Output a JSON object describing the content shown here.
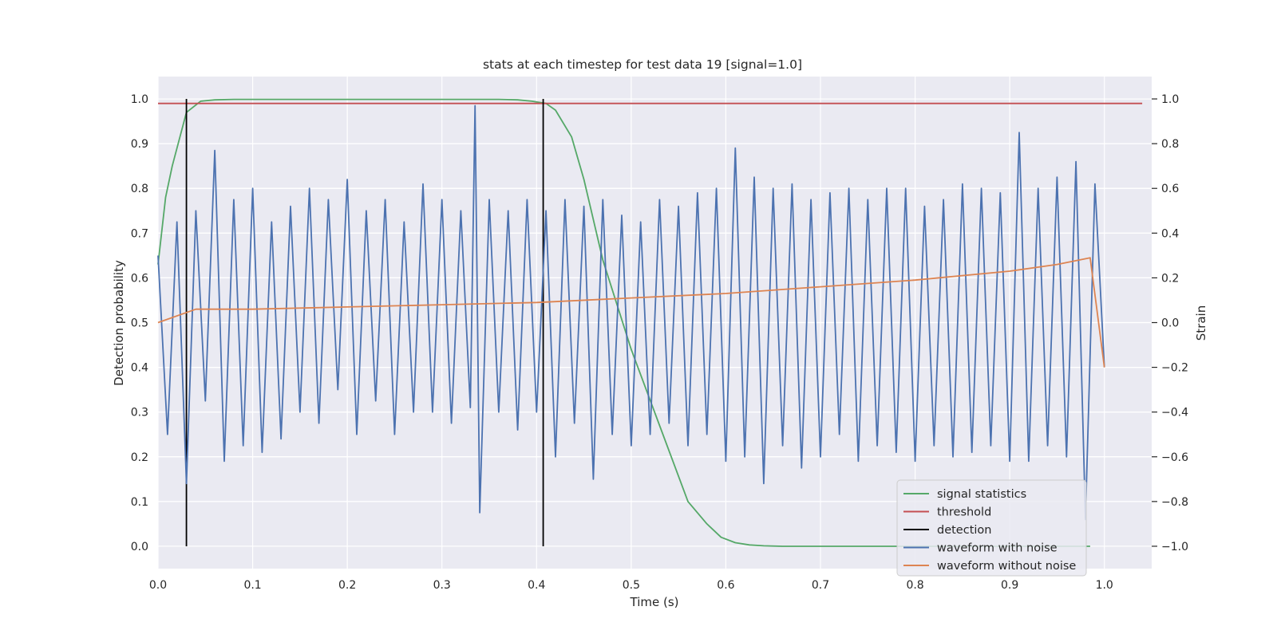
{
  "chart_data": {
    "type": "line",
    "title": "stats at each timestep for test data 19 [signal=1.0]",
    "xlabel": "Time (s)",
    "ylabel": "Detection probability",
    "y2label": "Strain",
    "xlim": [
      0.0,
      1.05
    ],
    "ylim": [
      -0.05,
      1.05
    ],
    "y2lim": [
      -1.1,
      1.1
    ],
    "grid": true,
    "x_ticks": [
      "0.0",
      "0.1",
      "0.2",
      "0.3",
      "0.4",
      "0.5",
      "0.6",
      "0.7",
      "0.8",
      "0.9",
      "1.0"
    ],
    "y_ticks": [
      "0.0",
      "0.1",
      "0.2",
      "0.3",
      "0.4",
      "0.5",
      "0.6",
      "0.7",
      "0.8",
      "0.9",
      "1.0"
    ],
    "y2_ticks": [
      "−1.0",
      "−0.8",
      "−0.6",
      "−0.4",
      "−0.2",
      "0.0",
      "0.2",
      "0.4",
      "0.6",
      "0.8",
      "1.0"
    ],
    "legend_position": "lower-right",
    "colors": {
      "signal": "#55a868",
      "threshold": "#c44e52",
      "detection": "#000000",
      "noisy": "#4c72b0",
      "clean": "#dd8452",
      "background": "#eaeaf2",
      "grid": "#ffffff"
    },
    "series": [
      {
        "name": "signal statistics",
        "axis": "left",
        "x": [
          0.0,
          0.008,
          0.015,
          0.03,
          0.045,
          0.06,
          0.08,
          0.1,
          0.2,
          0.3,
          0.36,
          0.38,
          0.395,
          0.41,
          0.42,
          0.437,
          0.45,
          0.47,
          0.5,
          0.53,
          0.56,
          0.58,
          0.595,
          0.61,
          0.625,
          0.64,
          0.66,
          0.7,
          0.8,
          0.9,
          0.985
        ],
        "y": [
          0.63,
          0.78,
          0.85,
          0.97,
          0.995,
          0.998,
          0.999,
          0.999,
          0.999,
          0.999,
          0.999,
          0.998,
          0.995,
          0.99,
          0.975,
          0.915,
          0.82,
          0.64,
          0.44,
          0.27,
          0.1,
          0.05,
          0.02,
          0.008,
          0.003,
          0.001,
          0.0,
          0.0,
          0.0,
          0.0,
          0.0
        ]
      },
      {
        "name": "threshold",
        "axis": "left",
        "x": [
          0.0,
          1.04
        ],
        "y": [
          0.99,
          0.99
        ]
      },
      {
        "name": "detection",
        "axis": "left",
        "segments": [
          {
            "x": 0.03,
            "y": [
              0.0,
              1.0
            ]
          },
          {
            "x": 0.407,
            "y": [
              0.0,
              1.0
            ]
          }
        ]
      },
      {
        "name": "waveform with noise",
        "axis": "right",
        "x": [
          0.0,
          0.01,
          0.02,
          0.03,
          0.04,
          0.05,
          0.06,
          0.07,
          0.08,
          0.09,
          0.1,
          0.11,
          0.12,
          0.13,
          0.14,
          0.15,
          0.16,
          0.17,
          0.18,
          0.19,
          0.2,
          0.21,
          0.22,
          0.23,
          0.24,
          0.25,
          0.26,
          0.27,
          0.28,
          0.29,
          0.3,
          0.31,
          0.32,
          0.33,
          0.335,
          0.34,
          0.35,
          0.36,
          0.37,
          0.38,
          0.39,
          0.4,
          0.41,
          0.42,
          0.43,
          0.44,
          0.45,
          0.46,
          0.47,
          0.48,
          0.49,
          0.5,
          0.51,
          0.52,
          0.53,
          0.54,
          0.55,
          0.56,
          0.57,
          0.58,
          0.59,
          0.6,
          0.61,
          0.62,
          0.63,
          0.64,
          0.65,
          0.66,
          0.67,
          0.68,
          0.69,
          0.7,
          0.71,
          0.72,
          0.73,
          0.74,
          0.75,
          0.76,
          0.77,
          0.78,
          0.79,
          0.8,
          0.81,
          0.82,
          0.83,
          0.84,
          0.85,
          0.86,
          0.87,
          0.88,
          0.89,
          0.9,
          0.91,
          0.92,
          0.93,
          0.94,
          0.95,
          0.96,
          0.97,
          0.98,
          0.99,
          1.0
        ],
        "y": [
          0.3,
          -0.5,
          0.45,
          -0.72,
          0.5,
          -0.35,
          0.77,
          -0.62,
          0.55,
          -0.55,
          0.6,
          -0.58,
          0.45,
          -0.52,
          0.52,
          -0.4,
          0.6,
          -0.45,
          0.55,
          -0.3,
          0.64,
          -0.5,
          0.5,
          -0.35,
          0.55,
          -0.5,
          0.45,
          -0.4,
          0.62,
          -0.4,
          0.55,
          -0.45,
          0.5,
          -0.38,
          0.97,
          -0.85,
          0.55,
          -0.4,
          0.5,
          -0.48,
          0.55,
          -0.4,
          0.5,
          -0.6,
          0.55,
          -0.45,
          0.52,
          -0.7,
          0.55,
          -0.5,
          0.48,
          -0.55,
          0.45,
          -0.5,
          0.55,
          -0.45,
          0.52,
          -0.55,
          0.58,
          -0.5,
          0.6,
          -0.62,
          0.78,
          -0.6,
          0.65,
          -0.72,
          0.6,
          -0.55,
          0.62,
          -0.65,
          0.55,
          -0.6,
          0.58,
          -0.5,
          0.6,
          -0.62,
          0.55,
          -0.55,
          0.6,
          -0.58,
          0.6,
          -0.62,
          0.52,
          -0.55,
          0.55,
          -0.6,
          0.62,
          -0.58,
          0.6,
          -0.55,
          0.58,
          -0.62,
          0.85,
          -0.62,
          0.6,
          -0.55,
          0.65,
          -0.6,
          0.72,
          -0.88,
          0.62,
          -0.2
        ]
      },
      {
        "name": "waveform without noise",
        "axis": "right",
        "x": [
          0.0,
          0.04,
          0.1,
          0.2,
          0.3,
          0.4,
          0.5,
          0.6,
          0.7,
          0.8,
          0.9,
          0.95,
          0.985,
          1.0
        ],
        "y": [
          0.0,
          0.06,
          0.06,
          0.07,
          0.08,
          0.09,
          0.11,
          0.13,
          0.16,
          0.19,
          0.23,
          0.26,
          0.29,
          -0.2
        ]
      }
    ]
  }
}
